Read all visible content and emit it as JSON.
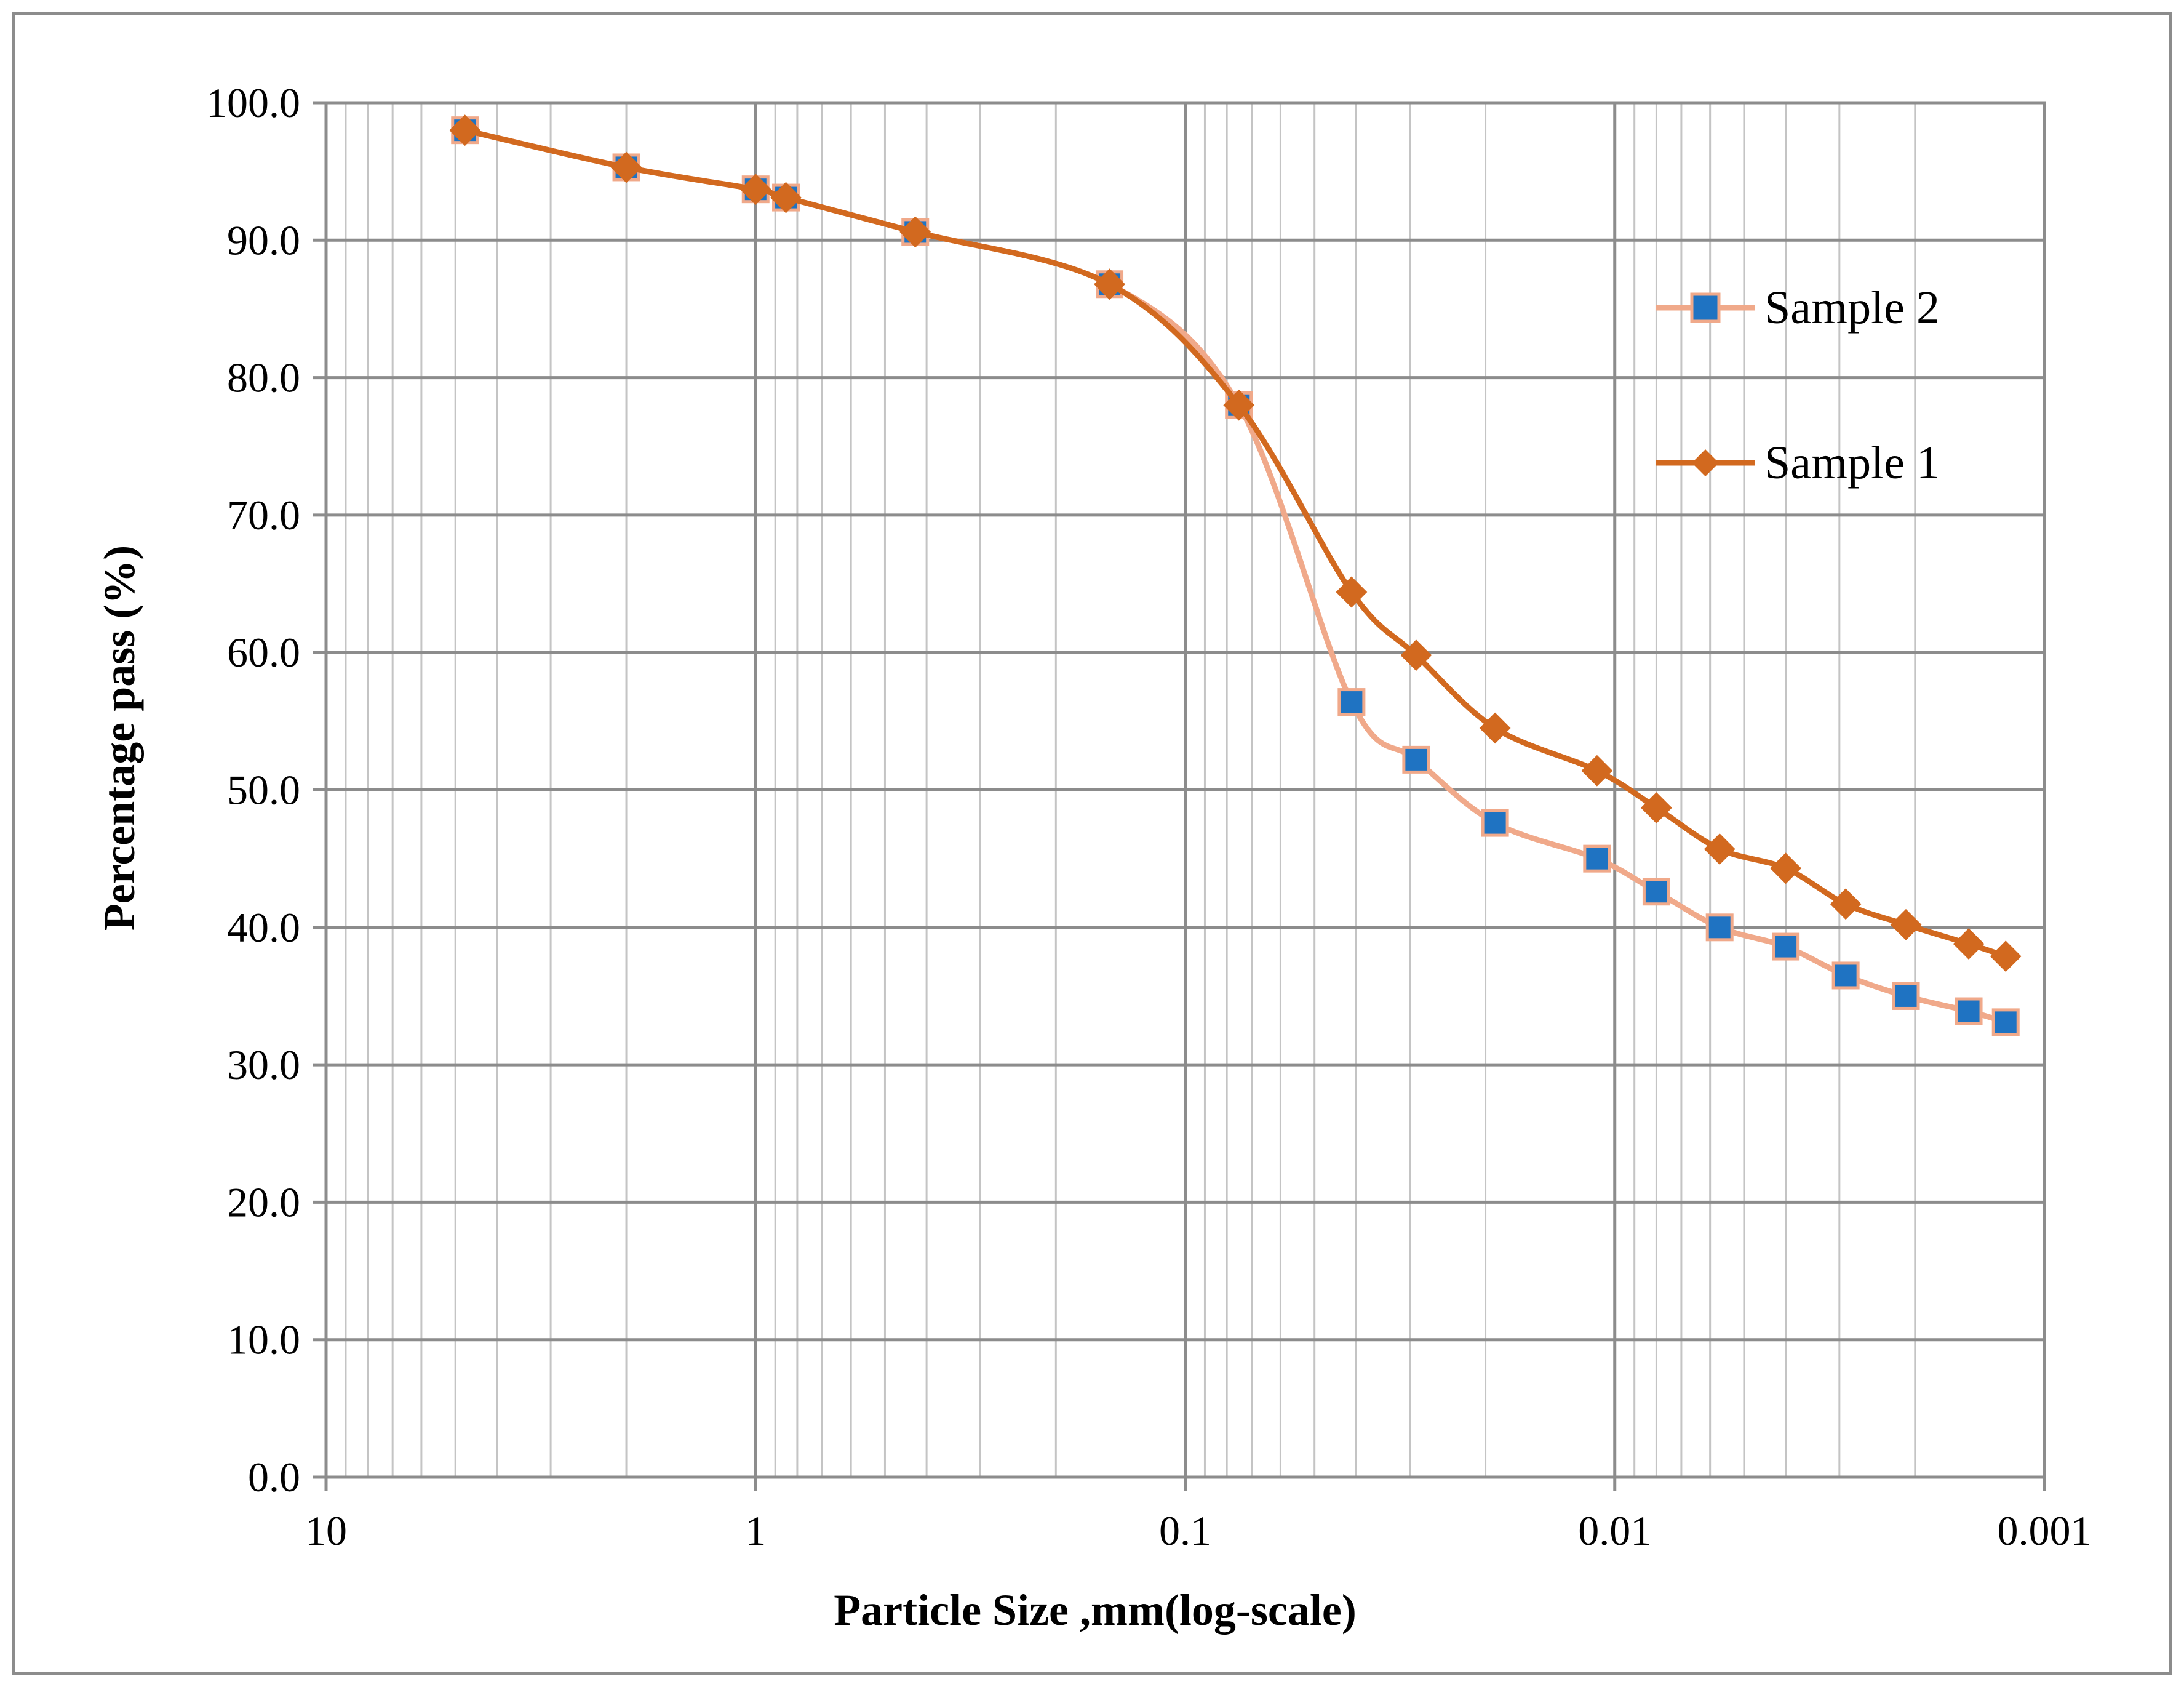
{
  "chart_data": {
    "type": "line",
    "title": "",
    "xlabel": "Particle Size ,mm(log-scale)",
    "ylabel": "Percentage pass (%)",
    "x_scale": "log",
    "x_reversed": true,
    "xlim": [
      10,
      0.001
    ],
    "ylim": [
      0,
      100
    ],
    "x_ticks": [
      {
        "value": 10,
        "label": "10"
      },
      {
        "value": 1,
        "label": "1"
      },
      {
        "value": 0.1,
        "label": "0.1"
      },
      {
        "value": 0.01,
        "label": "0.01"
      },
      {
        "value": 0.001,
        "label": "0.001"
      }
    ],
    "y_ticks": [
      {
        "value": 0,
        "label": "0.0"
      },
      {
        "value": 10,
        "label": "10.0"
      },
      {
        "value": 20,
        "label": "20.0"
      },
      {
        "value": 30,
        "label": "30.0"
      },
      {
        "value": 40,
        "label": "40.0"
      },
      {
        "value": 50,
        "label": "50.0"
      },
      {
        "value": 60,
        "label": "60.0"
      },
      {
        "value": 70,
        "label": "70.0"
      },
      {
        "value": 80,
        "label": "80.0"
      },
      {
        "value": 90,
        "label": "90.0"
      },
      {
        "value": 100,
        "label": "100.0"
      }
    ],
    "grid": true,
    "legend_position": "right",
    "series": [
      {
        "name": "Sample 2",
        "color": "#f0a98a",
        "marker": "square",
        "marker_color": "#1f73c2",
        "points": [
          {
            "x": 4.75,
            "y": 98.0
          },
          {
            "x": 2.0,
            "y": 95.3
          },
          {
            "x": 1.0,
            "y": 93.7
          },
          {
            "x": 0.85,
            "y": 93.1
          },
          {
            "x": 0.425,
            "y": 90.6
          },
          {
            "x": 0.15,
            "y": 86.8
          },
          {
            "x": 0.075,
            "y": 78.0
          },
          {
            "x": 0.041,
            "y": 56.4
          },
          {
            "x": 0.029,
            "y": 52.2
          },
          {
            "x": 0.019,
            "y": 47.6
          },
          {
            "x": 0.011,
            "y": 45.0
          },
          {
            "x": 0.008,
            "y": 42.6
          },
          {
            "x": 0.0057,
            "y": 40.0
          },
          {
            "x": 0.004,
            "y": 38.6
          },
          {
            "x": 0.0029,
            "y": 36.5
          },
          {
            "x": 0.0021,
            "y": 35.0
          },
          {
            "x": 0.0015,
            "y": 33.9
          },
          {
            "x": 0.00123,
            "y": 33.1
          }
        ]
      },
      {
        "name": "Sample 1",
        "color": "#d2691f",
        "marker": "diamond",
        "marker_color": "#d2691f",
        "points": [
          {
            "x": 4.75,
            "y": 98.0
          },
          {
            "x": 2.0,
            "y": 95.3
          },
          {
            "x": 1.0,
            "y": 93.7
          },
          {
            "x": 0.85,
            "y": 93.1
          },
          {
            "x": 0.425,
            "y": 90.6
          },
          {
            "x": 0.15,
            "y": 86.8
          },
          {
            "x": 0.075,
            "y": 78.0
          },
          {
            "x": 0.041,
            "y": 64.4
          },
          {
            "x": 0.029,
            "y": 59.8
          },
          {
            "x": 0.019,
            "y": 54.5
          },
          {
            "x": 0.011,
            "y": 51.4
          },
          {
            "x": 0.008,
            "y": 48.7
          },
          {
            "x": 0.0057,
            "y": 45.7
          },
          {
            "x": 0.004,
            "y": 44.3
          },
          {
            "x": 0.0029,
            "y": 41.7
          },
          {
            "x": 0.0021,
            "y": 40.2
          },
          {
            "x": 0.0015,
            "y": 38.8
          },
          {
            "x": 0.00123,
            "y": 37.9
          }
        ]
      }
    ]
  }
}
